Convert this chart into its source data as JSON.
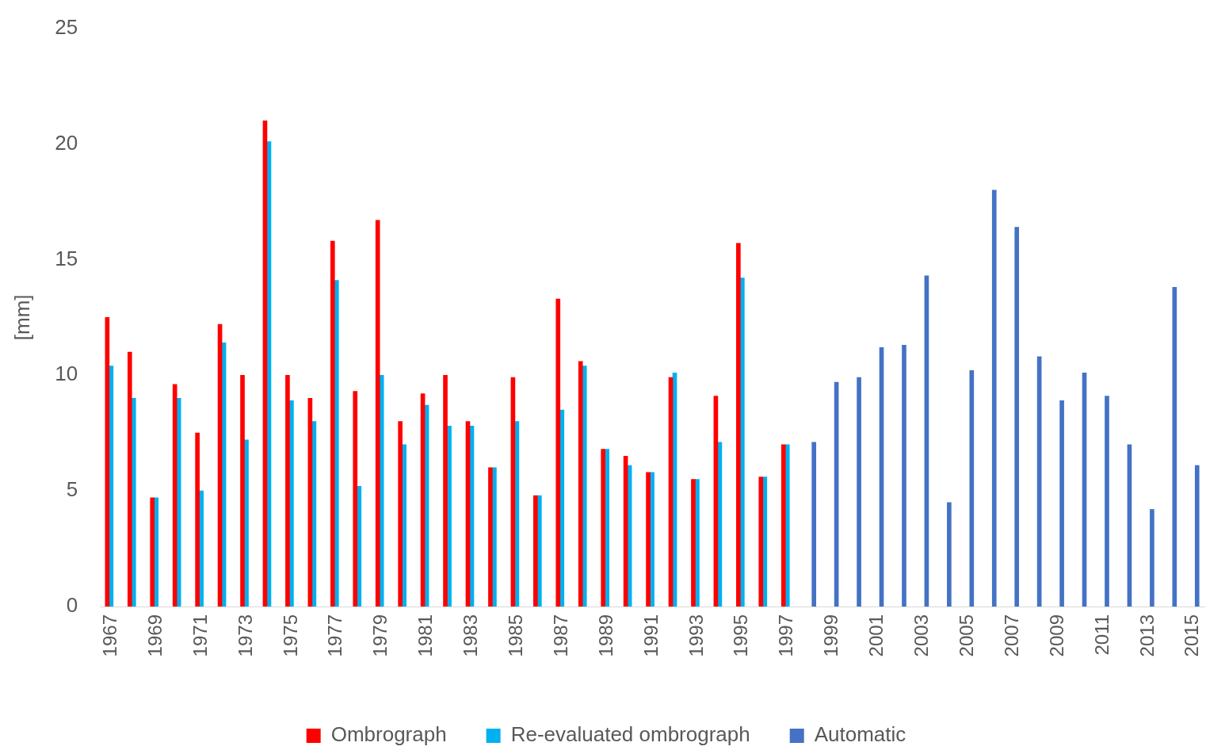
{
  "chart_data": {
    "type": "bar",
    "ylabel": "[mm]",
    "categories": [
      "1967",
      null,
      "1969",
      null,
      "1971",
      null,
      "1973",
      null,
      "1975",
      null,
      "1977",
      null,
      "1979",
      null,
      "1981",
      null,
      "1983",
      null,
      "1985",
      null,
      "1987",
      null,
      "1989",
      null,
      "1991",
      null,
      "1993",
      null,
      "1995",
      null,
      "1997",
      null,
      "1999",
      null,
      "2001",
      null,
      "2003",
      null,
      "2005",
      null,
      "2007",
      null,
      "2009",
      null,
      "2011",
      null,
      "2013",
      null,
      "2015"
    ],
    "series": [
      {
        "name": "Ombrograph",
        "color": "#ff0000",
        "values": [
          12.5,
          11.0,
          4.7,
          9.6,
          7.5,
          12.2,
          10.0,
          21.0,
          10.0,
          9.0,
          15.8,
          9.3,
          16.7,
          8.0,
          9.2,
          10.0,
          8.0,
          6.0,
          9.9,
          4.8,
          13.3,
          10.6,
          6.8,
          6.5,
          5.8,
          9.9,
          5.5,
          9.1,
          15.7,
          5.6,
          7.0,
          null,
          null,
          null,
          null,
          null,
          null,
          null,
          null,
          null,
          null,
          null,
          null,
          null,
          null,
          null,
          null,
          null,
          null
        ]
      },
      {
        "name": "Re-evaluated ombrograph",
        "color": "#00b0f0",
        "values": [
          10.4,
          9.0,
          4.7,
          9.0,
          5.0,
          11.4,
          7.2,
          20.1,
          8.9,
          8.0,
          14.1,
          5.2,
          10.0,
          7.0,
          8.7,
          7.8,
          7.8,
          6.0,
          8.0,
          4.8,
          8.5,
          10.4,
          6.8,
          6.1,
          5.8,
          10.1,
          5.5,
          7.1,
          14.2,
          5.6,
          7.0,
          null,
          null,
          null,
          null,
          null,
          null,
          null,
          null,
          null,
          null,
          null,
          null,
          null,
          null,
          null,
          null,
          null,
          null
        ]
      },
      {
        "name": "Automatic",
        "color": "#4472c4",
        "values": [
          null,
          null,
          null,
          null,
          null,
          null,
          null,
          null,
          null,
          null,
          null,
          null,
          null,
          null,
          null,
          null,
          null,
          null,
          null,
          null,
          null,
          null,
          null,
          null,
          null,
          null,
          null,
          null,
          null,
          null,
          null,
          7.1,
          9.7,
          9.9,
          11.2,
          11.3,
          14.3,
          4.5,
          10.2,
          18.0,
          16.4,
          10.8,
          8.9,
          10.1,
          9.1,
          7.0,
          4.2,
          13.8,
          6.1
        ]
      }
    ],
    "ylim": [
      0,
      25
    ],
    "yticks": [
      0,
      5,
      10,
      15,
      20,
      25
    ],
    "grid": false,
    "legend": "bottom"
  }
}
